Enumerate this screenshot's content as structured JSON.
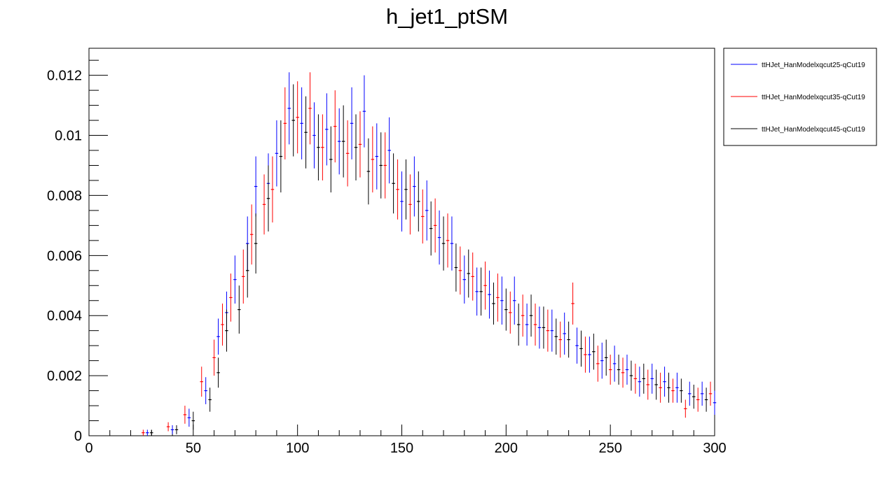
{
  "chart_data": {
    "type": "scatter",
    "title": "h_jet1_ptSM",
    "xlabel": "",
    "ylabel": "",
    "xlim": [
      0,
      300
    ],
    "ylim": [
      0,
      0.0129
    ],
    "x_ticks": [
      0,
      50,
      100,
      150,
      200,
      250,
      300
    ],
    "x_tick_labels": [
      "0",
      "50",
      "100",
      "150",
      "200",
      "250",
      "300"
    ],
    "y_ticks": [
      0,
      0.002,
      0.004,
      0.006,
      0.008,
      0.01,
      0.012
    ],
    "y_tick_labels": [
      "0",
      "0.002",
      "0.004",
      "0.006",
      "0.008",
      "0.01",
      "0.012"
    ],
    "grid": false,
    "legend_position": "top-right",
    "bin_width": 1.5,
    "series": [
      {
        "name": "ttHJet_HanModelxqcut25-qCut19",
        "color": "#0000ff",
        "x": [
          28,
          40,
          48,
          56,
          62,
          66,
          70,
          76,
          80,
          86,
          90,
          96,
          102,
          108,
          114,
          120,
          126,
          132,
          138,
          144,
          150,
          156,
          162,
          168,
          174,
          180,
          186,
          192,
          198,
          204,
          210,
          216,
          222,
          228,
          234,
          240,
          246,
          252,
          258,
          264,
          270,
          276,
          282,
          288,
          294,
          300
        ],
        "y": [
          0.0001,
          0.0002,
          0.0006,
          0.0015,
          0.0033,
          0.0041,
          0.0052,
          0.0064,
          0.0083,
          0.0084,
          0.0094,
          0.0109,
          0.0104,
          0.01,
          0.0102,
          0.0098,
          0.0104,
          0.0108,
          0.0093,
          0.0095,
          0.0078,
          0.0083,
          0.0075,
          0.0066,
          0.0064,
          0.0052,
          0.0048,
          0.0047,
          0.0045,
          0.0045,
          0.0037,
          0.0036,
          0.0035,
          0.0034,
          0.003,
          0.0027,
          0.0025,
          0.0024,
          0.0022,
          0.0018,
          0.0019,
          0.0018,
          0.0016,
          0.0014,
          0.0014,
          0.0011
        ],
        "err": [
          0.0001,
          0.00015,
          0.0003,
          0.00045,
          0.0006,
          0.0007,
          0.0008,
          0.0009,
          0.001,
          0.001,
          0.0011,
          0.0012,
          0.0012,
          0.0011,
          0.0012,
          0.0011,
          0.0012,
          0.0012,
          0.0011,
          0.0011,
          0.001,
          0.001,
          0.001,
          0.0009,
          0.0009,
          0.0008,
          0.0008,
          0.0008,
          0.0008,
          0.0008,
          0.0007,
          0.0007,
          0.0007,
          0.0007,
          0.0006,
          0.0006,
          0.0006,
          0.0006,
          0.0005,
          0.0005,
          0.0005,
          0.0005,
          0.0005,
          0.0004,
          0.0004,
          0.0004
        ]
      },
      {
        "name": "ttHJet_HanModelxqcut35-qCut19",
        "color": "#ff0000",
        "x": [
          26,
          38,
          46,
          54,
          60,
          64,
          68,
          74,
          78,
          84,
          88,
          94,
          100,
          106,
          112,
          118,
          124,
          130,
          136,
          142,
          148,
          154,
          160,
          166,
          172,
          178,
          184,
          190,
          196,
          202,
          208,
          214,
          220,
          226,
          232,
          238,
          244,
          250,
          256,
          262,
          268,
          274,
          280,
          286,
          292,
          298
        ],
        "y": [
          0.0001,
          0.0003,
          0.0007,
          0.0018,
          0.0026,
          0.0037,
          0.0046,
          0.0053,
          0.0067,
          0.0077,
          0.0082,
          0.0104,
          0.0106,
          0.0109,
          0.0096,
          0.0103,
          0.0094,
          0.0097,
          0.0092,
          0.009,
          0.0082,
          0.0077,
          0.0073,
          0.007,
          0.0065,
          0.0055,
          0.0053,
          0.005,
          0.0046,
          0.0041,
          0.004,
          0.0037,
          0.0035,
          0.0032,
          0.0044,
          0.0027,
          0.0024,
          0.0022,
          0.0021,
          0.0019,
          0.0017,
          0.0016,
          0.0015,
          0.0009,
          0.0012,
          0.0014
        ],
        "err": [
          0.0001,
          0.00015,
          0.0003,
          0.0005,
          0.0006,
          0.0007,
          0.0008,
          0.0009,
          0.001,
          0.001,
          0.0011,
          0.0012,
          0.0012,
          0.0012,
          0.0011,
          0.0012,
          0.0011,
          0.0011,
          0.0011,
          0.0011,
          0.001,
          0.001,
          0.0009,
          0.0009,
          0.0009,
          0.0008,
          0.0008,
          0.0008,
          0.0008,
          0.0007,
          0.0007,
          0.0007,
          0.0007,
          0.0006,
          0.0007,
          0.0006,
          0.0006,
          0.0005,
          0.0005,
          0.0005,
          0.0005,
          0.0005,
          0.0004,
          0.0003,
          0.0004,
          0.0004
        ]
      },
      {
        "name": "ttHJet_HanModelxqcut45-qCut19",
        "color": "#000000",
        "x": [
          30,
          42,
          50,
          58,
          62,
          66,
          72,
          76,
          80,
          86,
          92,
          98,
          104,
          110,
          116,
          122,
          128,
          134,
          140,
          146,
          152,
          158,
          164,
          170,
          176,
          182,
          188,
          194,
          200,
          206,
          212,
          218,
          224,
          230,
          236,
          242,
          248,
          254,
          260,
          266,
          272,
          278,
          284,
          290,
          296
        ],
        "y": [
          0.0001,
          0.0002,
          0.0005,
          0.0012,
          0.0021,
          0.0035,
          0.0042,
          0.0055,
          0.0064,
          0.0079,
          0.0093,
          0.0105,
          0.0101,
          0.0096,
          0.0092,
          0.0098,
          0.0096,
          0.0088,
          0.009,
          0.0084,
          0.0082,
          0.0078,
          0.0069,
          0.0064,
          0.0056,
          0.0054,
          0.0048,
          0.0044,
          0.0042,
          0.0037,
          0.004,
          0.0036,
          0.0033,
          0.0032,
          0.0029,
          0.0028,
          0.0026,
          0.0022,
          0.002,
          0.0019,
          0.0017,
          0.0016,
          0.0015,
          0.0013,
          0.0012
        ],
        "err": [
          0.0001,
          0.00015,
          0.0003,
          0.0004,
          0.0005,
          0.0007,
          0.0008,
          0.0009,
          0.001,
          0.0011,
          0.0012,
          0.0012,
          0.0012,
          0.0011,
          0.0011,
          0.0012,
          0.0011,
          0.0011,
          0.0011,
          0.001,
          0.001,
          0.001,
          0.0009,
          0.0009,
          0.0008,
          0.0008,
          0.0008,
          0.0007,
          0.0007,
          0.0007,
          0.0007,
          0.0007,
          0.0006,
          0.0006,
          0.0006,
          0.0006,
          0.0006,
          0.0005,
          0.0005,
          0.0005,
          0.0005,
          0.0005,
          0.0004,
          0.0004,
          0.0004
        ]
      }
    ]
  }
}
